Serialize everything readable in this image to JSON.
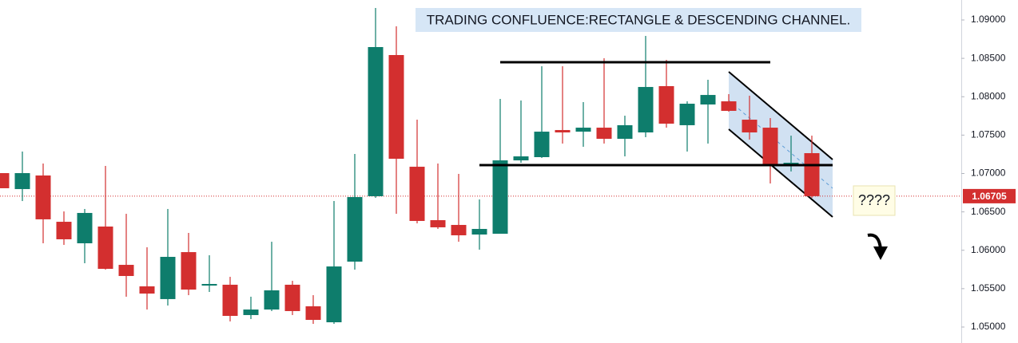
{
  "chart_data": {
    "type": "candlestick",
    "title": "TRADING CONFLUENCE:RECTANGLE & DESCENDING CHANNEL.",
    "annotation": "????",
    "up_color": "#0e7d6c",
    "down_color": "#d32f2f",
    "open": [
      1.07005,
      1.06797,
      1.06974,
      1.06371,
      1.06091,
      1.06309,
      1.0581,
      1.0553,
      1.05364,
      1.05976,
      1.0554,
      1.05551,
      1.05156,
      1.05228,
      1.05551,
      1.0527,
      1.05062,
      1.05852,
      1.06704,
      1.08543,
      1.07088,
      1.06392,
      1.0633,
      1.06205,
      1.06215,
      1.07171,
      1.07213,
      1.07566,
      1.07545,
      1.07597,
      1.07452,
      1.07535,
      1.08138,
      1.07629,
      1.07899,
      1.0794,
      1.07701,
      1.07597,
      1.07109,
      1.07265
    ],
    "high": [
      1.07005,
      1.07286,
      1.0713,
      1.06506,
      1.06538,
      1.07099,
      1.06475,
      1.06039,
      1.06538,
      1.06226,
      1.05935,
      1.05654,
      1.05395,
      1.06111,
      1.05602,
      1.05415,
      1.06641,
      1.07254,
      1.09156,
      1.08917,
      1.07701,
      1.0713,
      1.06995,
      1.06662,
      1.07971,
      1.07951,
      1.08397,
      1.08397,
      1.0793,
      1.08501,
      1.07753,
      1.08792,
      1.0848,
      1.0794,
      1.08221,
      1.08034,
      1.08013,
      1.07722,
      1.07493,
      1.07493
    ],
    "low": [
      1.06808,
      1.06641,
      1.06091,
      1.0607,
      1.05831,
      1.05748,
      1.05395,
      1.05228,
      1.0528,
      1.05415,
      1.05457,
      1.05073,
      1.05104,
      1.05208,
      1.05156,
      1.05041,
      1.05041,
      1.05748,
      1.06683,
      1.06475,
      1.06351,
      1.06278,
      1.06111,
      1.06008,
      1.06215,
      1.0714,
      1.07202,
      1.0739,
      1.07348,
      1.0739,
      1.07223,
      1.07473,
      1.07597,
      1.07286,
      1.0739,
      1.07805,
      1.07442,
      1.0687,
      1.07026,
      1.06683
    ],
    "close": [
      1.06808,
      1.07005,
      1.06403,
      1.06143,
      1.06486,
      1.05758,
      1.05665,
      1.05436,
      1.05914,
      1.05488,
      1.05561,
      1.05145,
      1.05228,
      1.05478,
      1.05208,
      1.05093,
      1.05789,
      1.06693,
      1.08647,
      1.07192,
      1.06382,
      1.06299,
      1.06195,
      1.06278,
      1.07171,
      1.07223,
      1.07545,
      1.07535,
      1.07597,
      1.07452,
      1.07629,
      1.08127,
      1.07649,
      1.07909,
      1.08023,
      1.07816,
      1.07535,
      1.07099,
      1.0714,
      1.06705
    ],
    "last_price": 1.06705,
    "horizontal_lines": [
      {
        "price": 1.08449,
        "start": 24,
        "end": 37
      },
      {
        "price": 1.07109,
        "start": 23,
        "end": 40
      }
    ],
    "channel": {
      "start": 35,
      "end": 40,
      "upper": [
        1.08325,
        1.07182
      ],
      "lower": [
        1.07577,
        1.06434
      ]
    },
    "ylim": [
      1.04792,
      1.0926
    ],
    "yticks": [
      {
        "value": 1.05,
        "label": "1.05000"
      },
      {
        "value": 1.055,
        "label": "1.05500"
      },
      {
        "value": 1.06,
        "label": "1.06000"
      },
      {
        "value": 1.065,
        "label": "1.06500"
      },
      {
        "value": 1.07,
        "label": "1.07000"
      },
      {
        "value": 1.075,
        "label": "1.07500"
      },
      {
        "value": 1.08,
        "label": "1.08000"
      },
      {
        "value": 1.085,
        "label": "1.08500"
      },
      {
        "value": 1.09,
        "label": "1.09000"
      }
    ]
  }
}
